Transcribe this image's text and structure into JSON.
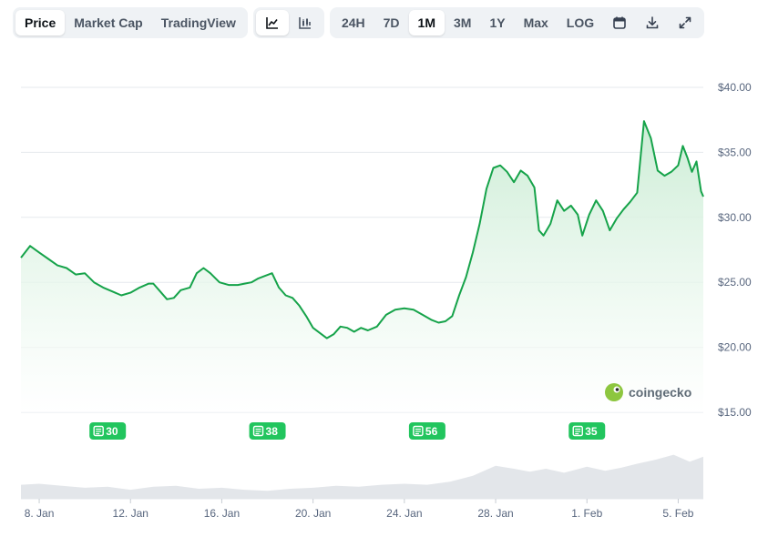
{
  "toolbar": {
    "view_tabs": [
      {
        "label": "Price",
        "active": true
      },
      {
        "label": "Market Cap",
        "active": false
      },
      {
        "label": "TradingView",
        "active": false
      }
    ],
    "chart_type_buttons": [
      {
        "icon": "line-chart-icon",
        "active": true
      },
      {
        "icon": "candlestick-chart-icon",
        "active": false
      }
    ],
    "range_tabs": [
      {
        "label": "24H",
        "active": false
      },
      {
        "label": "7D",
        "active": false
      },
      {
        "label": "1M",
        "active": true
      },
      {
        "label": "3M",
        "active": false
      },
      {
        "label": "1Y",
        "active": false
      },
      {
        "label": "Max",
        "active": false
      },
      {
        "label": "LOG",
        "active": false
      }
    ],
    "tool_icons": [
      "calendar-icon",
      "download-icon",
      "expand-icon"
    ]
  },
  "watermark": {
    "text": "coingecko"
  },
  "colors": {
    "line": "#16a34a",
    "area_top": "#c9ecd3",
    "news_badge": "#22c55e",
    "grid": "#e6e9ed",
    "volume": "#e3e6ea"
  },
  "chart_data": {
    "type": "area",
    "y_unit": "$",
    "ylim": [
      15,
      40
    ],
    "y_ticks": [
      "$40.00",
      "$35.00",
      "$30.00",
      "$25.00",
      "$20.00",
      "$15.00"
    ],
    "x_ticks": [
      "8. Jan",
      "12. Jan",
      "16. Jan",
      "20. Jan",
      "24. Jan",
      "28. Jan",
      "1. Feb",
      "5. Feb"
    ],
    "x_tick_days": [
      8,
      12,
      16,
      20,
      24,
      28,
      32,
      36
    ],
    "x_range_days": [
      7.2,
      37.1
    ],
    "grid": true,
    "price_series": [
      [
        7.2,
        26.9
      ],
      [
        7.6,
        27.8
      ],
      [
        8.0,
        27.3
      ],
      [
        8.4,
        26.8
      ],
      [
        8.8,
        26.3
      ],
      [
        9.2,
        26.1
      ],
      [
        9.6,
        25.6
      ],
      [
        10.0,
        25.7
      ],
      [
        10.4,
        25.0
      ],
      [
        10.8,
        24.6
      ],
      [
        11.2,
        24.3
      ],
      [
        11.6,
        24.0
      ],
      [
        12.0,
        24.2
      ],
      [
        12.4,
        24.6
      ],
      [
        12.8,
        24.9
      ],
      [
        13.0,
        24.9
      ],
      [
        13.3,
        24.3
      ],
      [
        13.6,
        23.7
      ],
      [
        13.9,
        23.8
      ],
      [
        14.2,
        24.4
      ],
      [
        14.6,
        24.6
      ],
      [
        14.9,
        25.7
      ],
      [
        15.2,
        26.1
      ],
      [
        15.5,
        25.7
      ],
      [
        15.9,
        25.0
      ],
      [
        16.3,
        24.8
      ],
      [
        16.7,
        24.8
      ],
      [
        17.0,
        24.9
      ],
      [
        17.3,
        25.0
      ],
      [
        17.6,
        25.3
      ],
      [
        17.9,
        25.5
      ],
      [
        18.2,
        25.7
      ],
      [
        18.5,
        24.6
      ],
      [
        18.8,
        24.0
      ],
      [
        19.1,
        23.8
      ],
      [
        19.4,
        23.2
      ],
      [
        19.7,
        22.4
      ],
      [
        20.0,
        21.5
      ],
      [
        20.3,
        21.1
      ],
      [
        20.6,
        20.7
      ],
      [
        20.9,
        21.0
      ],
      [
        21.2,
        21.6
      ],
      [
        21.5,
        21.5
      ],
      [
        21.8,
        21.2
      ],
      [
        22.1,
        21.5
      ],
      [
        22.4,
        21.3
      ],
      [
        22.8,
        21.6
      ],
      [
        23.2,
        22.5
      ],
      [
        23.6,
        22.9
      ],
      [
        24.0,
        23.0
      ],
      [
        24.4,
        22.9
      ],
      [
        24.8,
        22.5
      ],
      [
        25.2,
        22.1
      ],
      [
        25.5,
        21.9
      ],
      [
        25.8,
        22.0
      ],
      [
        26.1,
        22.4
      ],
      [
        26.4,
        24.0
      ],
      [
        26.7,
        25.4
      ],
      [
        27.0,
        27.3
      ],
      [
        27.3,
        29.5
      ],
      [
        27.6,
        32.2
      ],
      [
        27.9,
        33.8
      ],
      [
        28.2,
        34.0
      ],
      [
        28.5,
        33.5
      ],
      [
        28.8,
        32.7
      ],
      [
        29.1,
        33.6
      ],
      [
        29.4,
        33.2
      ],
      [
        29.7,
        32.3
      ],
      [
        29.9,
        29.0
      ],
      [
        30.1,
        28.6
      ],
      [
        30.4,
        29.5
      ],
      [
        30.7,
        31.3
      ],
      [
        31.0,
        30.5
      ],
      [
        31.3,
        30.9
      ],
      [
        31.6,
        30.2
      ],
      [
        31.8,
        28.6
      ],
      [
        32.1,
        30.2
      ],
      [
        32.4,
        31.3
      ],
      [
        32.7,
        30.5
      ],
      [
        33.0,
        29.0
      ],
      [
        33.3,
        29.9
      ],
      [
        33.6,
        30.6
      ],
      [
        33.9,
        31.2
      ],
      [
        34.2,
        31.9
      ],
      [
        34.5,
        37.4
      ],
      [
        34.8,
        36.1
      ],
      [
        35.1,
        33.6
      ],
      [
        35.4,
        33.2
      ],
      [
        35.7,
        33.5
      ],
      [
        36.0,
        34.0
      ],
      [
        36.2,
        35.5
      ],
      [
        36.4,
        34.6
      ],
      [
        36.6,
        33.5
      ],
      [
        36.8,
        34.3
      ],
      [
        37.0,
        32.0
      ],
      [
        37.1,
        31.6
      ]
    ],
    "volume_series": [
      [
        7.2,
        0.28
      ],
      [
        8.0,
        0.3
      ],
      [
        9.0,
        0.26
      ],
      [
        10.0,
        0.22
      ],
      [
        11.0,
        0.24
      ],
      [
        12.0,
        0.18
      ],
      [
        13.0,
        0.24
      ],
      [
        14.0,
        0.26
      ],
      [
        15.0,
        0.2
      ],
      [
        16.0,
        0.22
      ],
      [
        17.0,
        0.18
      ],
      [
        18.0,
        0.16
      ],
      [
        19.0,
        0.2
      ],
      [
        20.0,
        0.22
      ],
      [
        21.0,
        0.26
      ],
      [
        22.0,
        0.24
      ],
      [
        23.0,
        0.28
      ],
      [
        24.0,
        0.3
      ],
      [
        25.0,
        0.28
      ],
      [
        26.0,
        0.34
      ],
      [
        27.0,
        0.46
      ],
      [
        28.0,
        0.66
      ],
      [
        28.8,
        0.6
      ],
      [
        29.5,
        0.54
      ],
      [
        30.2,
        0.6
      ],
      [
        31.0,
        0.52
      ],
      [
        32.0,
        0.64
      ],
      [
        32.8,
        0.56
      ],
      [
        33.5,
        0.62
      ],
      [
        34.2,
        0.7
      ],
      [
        35.0,
        0.78
      ],
      [
        35.8,
        0.88
      ],
      [
        36.5,
        0.74
      ],
      [
        37.1,
        0.84
      ]
    ],
    "annotations": [
      {
        "label": "30",
        "day": 11.0
      },
      {
        "label": "38",
        "day": 18.0
      },
      {
        "label": "56",
        "day": 25.0
      },
      {
        "label": "35",
        "day": 32.0
      }
    ]
  }
}
